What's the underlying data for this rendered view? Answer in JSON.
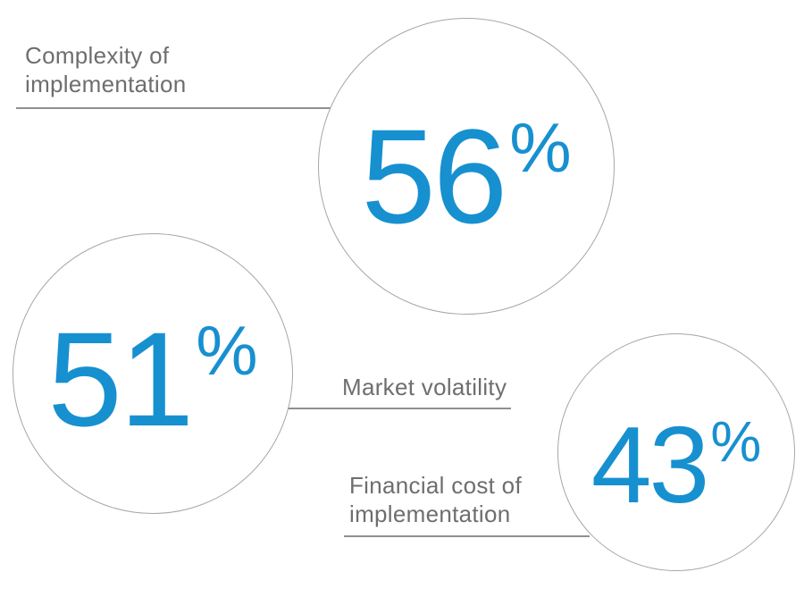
{
  "colors": {
    "accent_blue": "#1790d0",
    "label_gray": "#6e6e6e",
    "circle_border_gray": "#a6a6a6",
    "connector_gray": "#8f8f8f",
    "background": "#ffffff"
  },
  "stats": [
    {
      "id": "complexity",
      "label": "Complexity of implementation",
      "label_line1": "Complexity of",
      "label_line2": "implementation",
      "value": "56",
      "unit": "%"
    },
    {
      "id": "market",
      "label": "Market volatility",
      "label_line1": "Market volatility",
      "value": "51",
      "unit": "%"
    },
    {
      "id": "financial",
      "label": "Financial cost of implementation",
      "label_line1": "Financial cost of",
      "label_line2": "implementation",
      "value": "43",
      "unit": "%"
    }
  ],
  "chart_data": {
    "type": "bubble",
    "categories": [
      "Complexity of implementation",
      "Market volatility",
      "Financial cost of implementation"
    ],
    "values": [
      56,
      51,
      43
    ],
    "unit": "%",
    "title": "",
    "legend": "none",
    "axes": "none",
    "layout_hints": {
      "bubble_radius_proportional_to_value": true,
      "bubbles": [
        {
          "label": "Complexity of implementation",
          "value": 56,
          "position": "top-center",
          "label_position": "top-left"
        },
        {
          "label": "Market volatility",
          "value": 51,
          "position": "middle-left",
          "label_position": "right-of-bubble"
        },
        {
          "label": "Financial cost of implementation",
          "value": 43,
          "position": "bottom-right",
          "label_position": "left-of-bubble"
        }
      ]
    }
  }
}
